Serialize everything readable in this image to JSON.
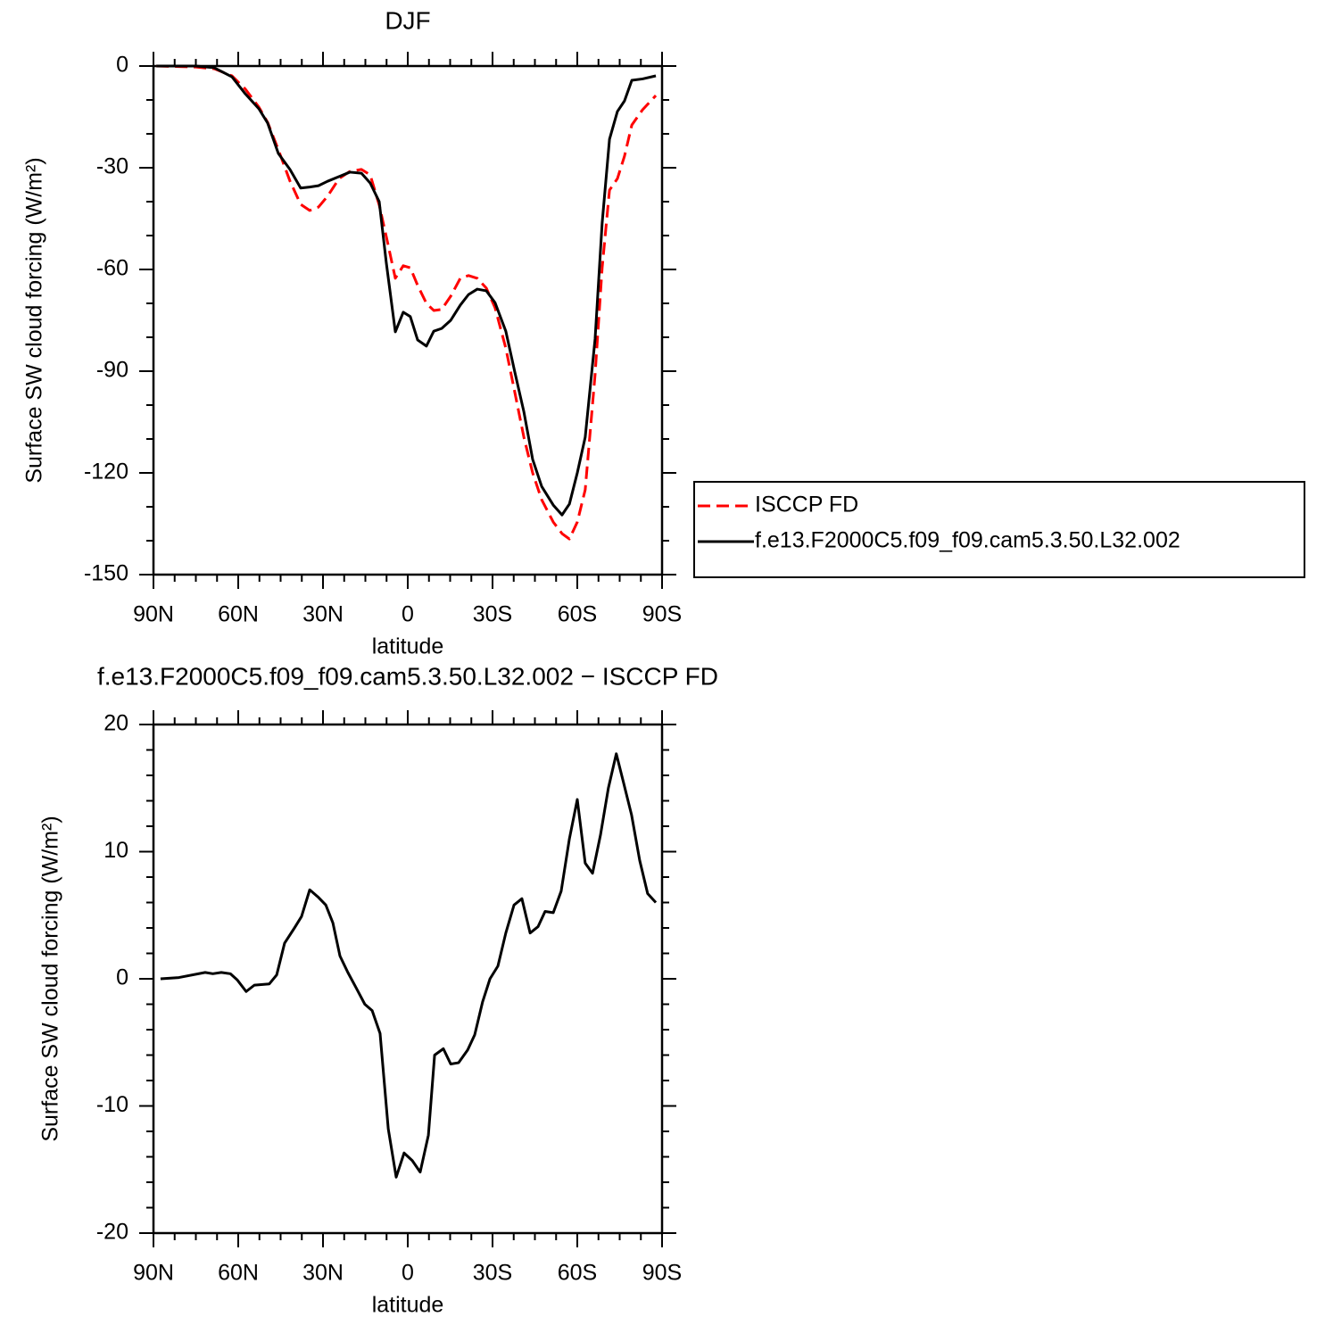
{
  "chart_data": [
    {
      "type": "line",
      "title": "DJF",
      "xlabel": "latitude",
      "ylabel": "Surface SW cloud forcing (W/m²)",
      "x": [
        89,
        75,
        68.5,
        62.2,
        57.5,
        52.7,
        49.6,
        45.8,
        41.7,
        37.9,
        34.7,
        31.6,
        28.4,
        24.3,
        20.5,
        16.4,
        13.3,
        10.1,
        7.6,
        4.4,
        1.6,
        -0.9,
        -3.5,
        -6.6,
        -9.2,
        -12,
        -15.2,
        -18.6,
        -21.5,
        -24.6,
        -27.8,
        -30.9,
        -34.7,
        -37.9,
        -41.1,
        -44.2,
        -47.4,
        -51.5,
        -54.6,
        -57.2,
        -60,
        -62.8,
        -66.3,
        -68.8,
        -71.4,
        -74.2,
        -76.7,
        -79.3,
        -83.1,
        -87.8
      ],
      "series": [
        {
          "name": "ISCCP FD",
          "color": "#ff0000",
          "linestyle": "dashed",
          "values": [
            0,
            -0.3,
            -0.8,
            -2.9,
            -6.8,
            -12.1,
            -16.6,
            -24.7,
            -33.9,
            -40.8,
            -42.6,
            -41.6,
            -38.4,
            -33.2,
            -31.1,
            -30.5,
            -32.1,
            -41,
            -50.3,
            -62.6,
            -58.9,
            -59.5,
            -64.7,
            -70,
            -72.1,
            -71.8,
            -67.9,
            -62.6,
            -61.8,
            -62.6,
            -65.5,
            -71.3,
            -83.2,
            -96.3,
            -109.5,
            -120,
            -127.9,
            -134.5,
            -137.9,
            -139.5,
            -134.5,
            -125,
            -91,
            -59.5,
            -36.6,
            -33.2,
            -26.6,
            -17.4,
            -12.9,
            -8.7
          ]
        },
        {
          "name": "f.e13.F2000C5.f09_f09.cam5.3.50.L32.002",
          "color": "#000000",
          "linestyle": "solid",
          "values": [
            0,
            0,
            -0.5,
            -3.2,
            -8.2,
            -12.6,
            -16.8,
            -25.8,
            -30.5,
            -36,
            -35.7,
            -35.3,
            -34,
            -32.6,
            -31.3,
            -31.6,
            -34.5,
            -40,
            -58,
            -78.4,
            -72.6,
            -73.9,
            -80.8,
            -82.6,
            -78.2,
            -77.4,
            -75,
            -70.5,
            -67.4,
            -65.8,
            -66.3,
            -69.8,
            -78.2,
            -90.3,
            -102,
            -116,
            -124,
            -129.5,
            -132.4,
            -129.2,
            -120,
            -109.5,
            -80.5,
            -46.3,
            -21.6,
            -13.4,
            -10.3,
            -4.2,
            -3.8,
            -2.9
          ]
        }
      ],
      "xlim": [
        90,
        -90
      ],
      "xticks": [
        {
          "value": 90,
          "label": "90N"
        },
        {
          "value": 60,
          "label": "60N"
        },
        {
          "value": 30,
          "label": "30N"
        },
        0,
        {
          "value": -30,
          "label": "30S"
        },
        {
          "value": -60,
          "label": "60S"
        },
        {
          "value": -90,
          "label": "90S"
        }
      ],
      "ylim": [
        -150,
        0
      ],
      "yticks": [
        0,
        -30,
        -60,
        -90,
        -120,
        -150
      ],
      "legend": "outside-right"
    },
    {
      "type": "line",
      "title": "f.e13.F2000C5.f09_f09.cam5.3.50.L32.002 − ISCCP FD",
      "xlabel": "latitude",
      "ylabel": "Surface SW cloud forcing (W/m²)",
      "x": [
        87.5,
        81,
        71.7,
        69,
        66,
        62.8,
        60.3,
        57.2,
        54.3,
        49,
        46.4,
        43.6,
        40.1,
        37.6,
        34.7,
        31.6,
        29,
        26.5,
        24,
        21.2,
        18.3,
        15.2,
        12.6,
        9.8,
        6.9,
        4.1,
        1.3,
        -1.6,
        -4.4,
        -7.3,
        -9.5,
        -12.6,
        -15.2,
        -18,
        -21.2,
        -23.7,
        -26.5,
        -29.1,
        -31.9,
        -34.7,
        -37.6,
        -40.4,
        -43.3,
        -46.1,
        -48.6,
        -51.5,
        -54.3,
        -57.2,
        -60,
        -62.8,
        -65.4,
        -68.2,
        -71,
        -73.8,
        -76.4,
        -79.2,
        -82.1,
        -84.9,
        -87.8
      ],
      "values": [
        0,
        0.1,
        0.5,
        0.4,
        0.5,
        0.4,
        -0.1,
        -1,
        -0.5,
        -0.4,
        0.3,
        2.8,
        4,
        4.9,
        7,
        6.4,
        5.8,
        4.4,
        1.8,
        0.5,
        -0.7,
        -2,
        -2.5,
        -4.3,
        -11.8,
        -15.6,
        -13.7,
        -14.3,
        -15.2,
        -12.3,
        -6,
        -5.5,
        -6.7,
        -6.6,
        -5.6,
        -4.4,
        -1.8,
        0,
        1,
        3.6,
        5.8,
        6.3,
        3.6,
        4.1,
        5.3,
        5.2,
        6.9,
        11,
        14.1,
        9.1,
        8.3,
        11.3,
        15,
        17.7,
        15.4,
        12.9,
        9.3,
        6.7,
        6
      ],
      "color": "#000000",
      "xlim": [
        90,
        -90
      ],
      "xticks": [
        {
          "value": 90,
          "label": "90N"
        },
        {
          "value": 60,
          "label": "60N"
        },
        {
          "value": 30,
          "label": "30N"
        },
        0,
        {
          "value": -30,
          "label": "30S"
        },
        {
          "value": -60,
          "label": "60S"
        },
        {
          "value": -90,
          "label": "90S"
        }
      ],
      "ylim": [
        -20,
        20
      ],
      "yticks": [
        20,
        10,
        0,
        -10,
        -20
      ]
    }
  ]
}
